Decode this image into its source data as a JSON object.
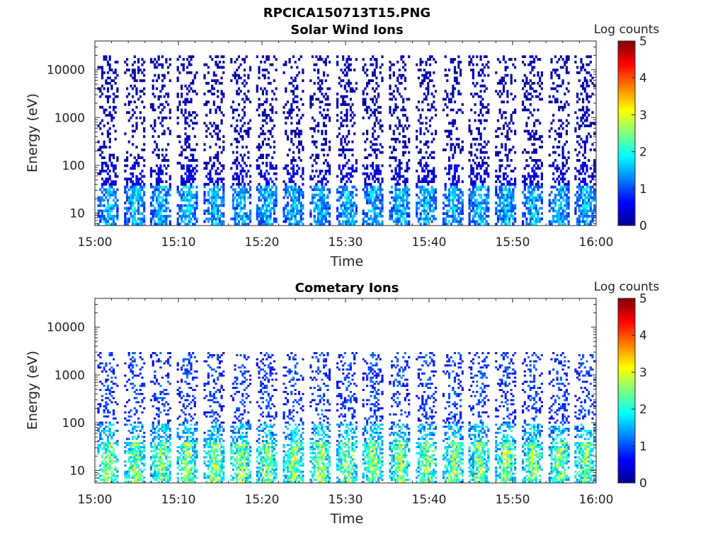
{
  "figure": {
    "title": "RPCICA150713T15.PNG"
  },
  "chart_data": [
    {
      "type": "heatmap",
      "title": "Solar Wind Ions",
      "xlabel": "Time",
      "ylabel": "Energy (eV)",
      "x_ticks": [
        "15:00",
        "15:10",
        "15:20",
        "15:30",
        "15:40",
        "15:50",
        "16:00"
      ],
      "xlim": [
        "15:00",
        "16:00"
      ],
      "y_scale": "log",
      "y_ticks": [
        "10",
        "100",
        "1000",
        "10000"
      ],
      "ylim": [
        5.5,
        40000
      ],
      "colorbar": {
        "label": "Log counts",
        "ticks": [
          "0",
          "1",
          "2",
          "3",
          "4",
          "5"
        ],
        "range": [
          0,
          5
        ],
        "colormap": "jet"
      },
      "grid": false,
      "sweep_period_min": 3.2,
      "sweep_starts_min": [
        0.3,
        3.5,
        6.6,
        9.8,
        13.0,
        16.2,
        19.3,
        22.5,
        25.7,
        28.9,
        32.0,
        35.2,
        38.4,
        41.6,
        44.7,
        47.9,
        51.1,
        54.3,
        57.4
      ],
      "sweep_peak_log_counts": {
        "below_40eV": 1.9,
        "40_to_100eV": 0.6,
        "above_100eV": 0.3
      },
      "sweep_max_energy_eV": 20000
    },
    {
      "type": "heatmap",
      "title": "Cometary Ions",
      "xlabel": "Time",
      "ylabel": "Energy (eV)",
      "x_ticks": [
        "15:00",
        "15:10",
        "15:20",
        "15:30",
        "15:40",
        "15:50",
        "16:00"
      ],
      "xlim": [
        "15:00",
        "16:00"
      ],
      "y_scale": "log",
      "y_ticks": [
        "10",
        "100",
        "1000",
        "10000"
      ],
      "ylim": [
        5.5,
        40000
      ],
      "colorbar": {
        "label": "Log counts",
        "ticks": [
          "0",
          "1",
          "2",
          "3",
          "4",
          "5"
        ],
        "range": [
          0,
          5
        ],
        "colormap": "jet"
      },
      "grid": false,
      "sweep_period_min": 3.2,
      "sweep_starts_min": [
        0.3,
        3.5,
        6.6,
        9.8,
        13.0,
        16.2,
        19.3,
        22.5,
        25.7,
        28.9,
        32.0,
        35.2,
        38.4,
        41.6,
        44.7,
        47.9,
        51.1,
        54.3,
        57.4
      ],
      "sweep_peak_log_counts": {
        "below_40eV": 3.0,
        "40_to_100eV": 2.1,
        "above_100eV": 1.2
      },
      "sweep_max_energy_eV": 3000
    }
  ]
}
